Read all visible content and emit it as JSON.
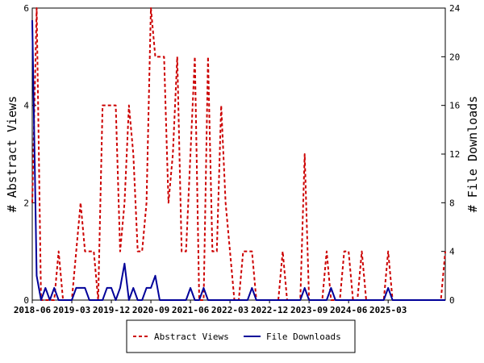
{
  "chart_data": {
    "type": "line",
    "x_tick_labels": [
      "2018-06",
      "2019-03",
      "2019-12",
      "2020-09",
      "2021-06",
      "2022-03",
      "2022-12",
      "2023-09",
      "2024-06",
      "2025-03"
    ],
    "left_axis": {
      "label": "# Abstract Views",
      "ylim": [
        0,
        6
      ],
      "ticks": [
        "0",
        "2",
        "4",
        "6"
      ]
    },
    "right_axis": {
      "label": "# File Downloads",
      "ylim": [
        0,
        24
      ],
      "ticks": [
        "0",
        "4",
        "8",
        "12",
        "16",
        "20",
        "24"
      ]
    },
    "grid": false,
    "legend_position": "bottom",
    "series": [
      {
        "name": "Abstract Views",
        "axis": "left",
        "color": "#cc0000",
        "style": "dashed",
        "values": [
          2,
          6,
          0,
          0,
          0,
          0,
          1,
          0,
          0,
          0,
          1,
          2,
          1,
          1,
          1,
          0,
          4,
          4,
          4,
          4,
          1,
          2,
          4,
          3,
          1,
          1,
          2,
          6,
          5,
          5,
          5,
          2,
          3,
          5,
          1,
          1,
          3,
          5,
          0,
          0,
          5,
          1,
          1,
          4,
          2,
          1,
          0,
          0,
          1,
          1,
          1,
          0,
          0,
          0,
          0,
          0,
          0,
          1,
          0,
          0,
          0,
          0,
          3,
          0,
          0,
          0,
          0,
          1,
          0,
          0,
          0,
          1,
          1,
          0,
          0,
          1,
          0,
          0,
          0,
          0,
          0,
          1,
          0,
          0,
          0,
          0,
          0,
          0,
          0,
          0,
          0,
          0,
          0,
          0,
          1
        ]
      },
      {
        "name": "File Downloads",
        "axis": "right",
        "color": "#000099",
        "style": "solid",
        "values": [
          23,
          2,
          0,
          1,
          0,
          1,
          0,
          0,
          0,
          0,
          1,
          1,
          1,
          0,
          0,
          0,
          0,
          1,
          1,
          0,
          1,
          3,
          0,
          1,
          0,
          0,
          1,
          1,
          2,
          0,
          0,
          0,
          0,
          0,
          0,
          0,
          1,
          0,
          0,
          1,
          0,
          0,
          0,
          0,
          0,
          0,
          0,
          0,
          0,
          0,
          1,
          0,
          0,
          0,
          0,
          0,
          0,
          0,
          0,
          0,
          0,
          0,
          1,
          0,
          0,
          0,
          0,
          0,
          1,
          0,
          0,
          0,
          0,
          0,
          0,
          0,
          0,
          0,
          0,
          0,
          0,
          1,
          0,
          0,
          0,
          0,
          0,
          0,
          0,
          0,
          0,
          0,
          0,
          0,
          0
        ]
      }
    ]
  }
}
